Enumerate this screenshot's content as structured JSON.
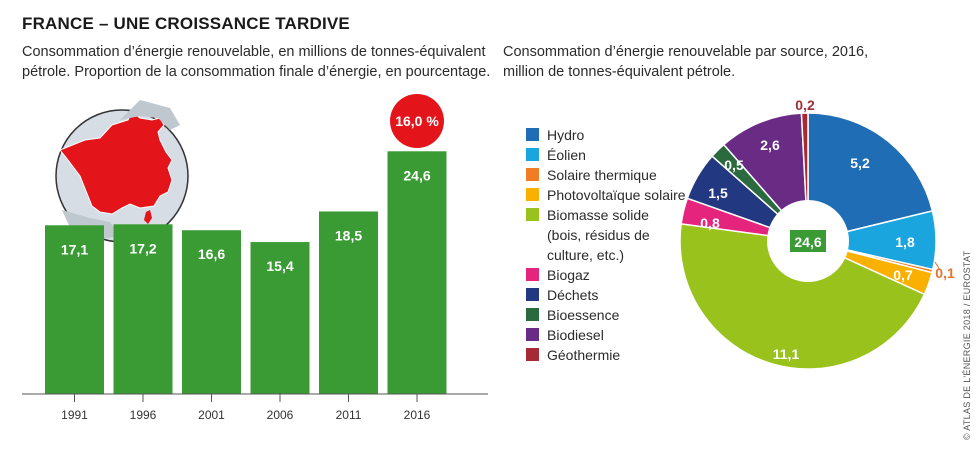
{
  "header": {
    "title": "FRANCE – UNE CROISSANCE TARDIVE",
    "subtitle_left": "Consommation d’énergie renouvelable, en millions de tonnes-équivalent pétrole. Proportion de la consommation finale d’énergie, en pourcentage.",
    "subtitle_right": "Consommation d’énergie renouvelable par source, 2016, million de tonnes-équivalent pétrole."
  },
  "credit": "© ATLAS DE L’ÉNERGIE 2018 / EUROSTAT",
  "map": {
    "icon": "france-map-icon"
  },
  "colors": {
    "bar": "#3a9b35",
    "badge": "#e3151b",
    "Hydro": "#1f6db5",
    "Eolien": "#1aa5de",
    "Solaire thermique": "#f07d23",
    "Photovoltaique": "#f9b000",
    "Biomasse": "#99c31c",
    "Biogaz": "#e5257d",
    "Dechets": "#223880",
    "Bioessence": "#2b6a3f",
    "Biodiesel": "#6a2b85",
    "Geothermie": "#a52a34"
  },
  "chart_data": [
    {
      "type": "bar",
      "categories": [
        "1991",
        "1996",
        "2001",
        "2006",
        "2011",
        "2016"
      ],
      "values": [
        17.1,
        17.2,
        16.6,
        15.4,
        18.5,
        24.6
      ],
      "value_labels": [
        "17,1",
        "17,2",
        "16,6",
        "15,4",
        "18,5",
        "24,6"
      ],
      "ylim": [
        0,
        30
      ],
      "annotation": {
        "category": "2016",
        "text": "16,0 %"
      }
    },
    {
      "type": "pie",
      "total_label": "24,6",
      "slices": [
        {
          "name": "Hydro",
          "legend": "Hydro",
          "value": 5.2,
          "label": "5,2"
        },
        {
          "name": "Eolien",
          "legend": "Éolien",
          "value": 1.8,
          "label": "1,8"
        },
        {
          "name": "Solaire thermique",
          "legend": "Solaire thermique",
          "value": 0.1,
          "label": "0,1"
        },
        {
          "name": "Photovoltaique",
          "legend": "Photovoltaïque solaire",
          "value": 0.7,
          "label": "0,7"
        },
        {
          "name": "Biomasse",
          "legend": "Biomasse solide",
          "legend_extra": [
            "(bois, résidus de",
            "culture, etc.)"
          ],
          "value": 11.1,
          "label": "11,1"
        },
        {
          "name": "Biogaz",
          "legend": "Biogaz",
          "value": 0.8,
          "label": "0,8"
        },
        {
          "name": "Dechets",
          "legend": "Déchets",
          "value": 1.5,
          "label": "1,5"
        },
        {
          "name": "Bioessence",
          "legend": "Bioessence",
          "value": 0.5,
          "label": "0,5"
        },
        {
          "name": "Biodiesel",
          "legend": "Biodiesel",
          "value": 2.6,
          "label": "2,6"
        },
        {
          "name": "Geothermie",
          "legend": "Géothermie",
          "value": 0.2,
          "label": "0,2"
        }
      ]
    }
  ]
}
